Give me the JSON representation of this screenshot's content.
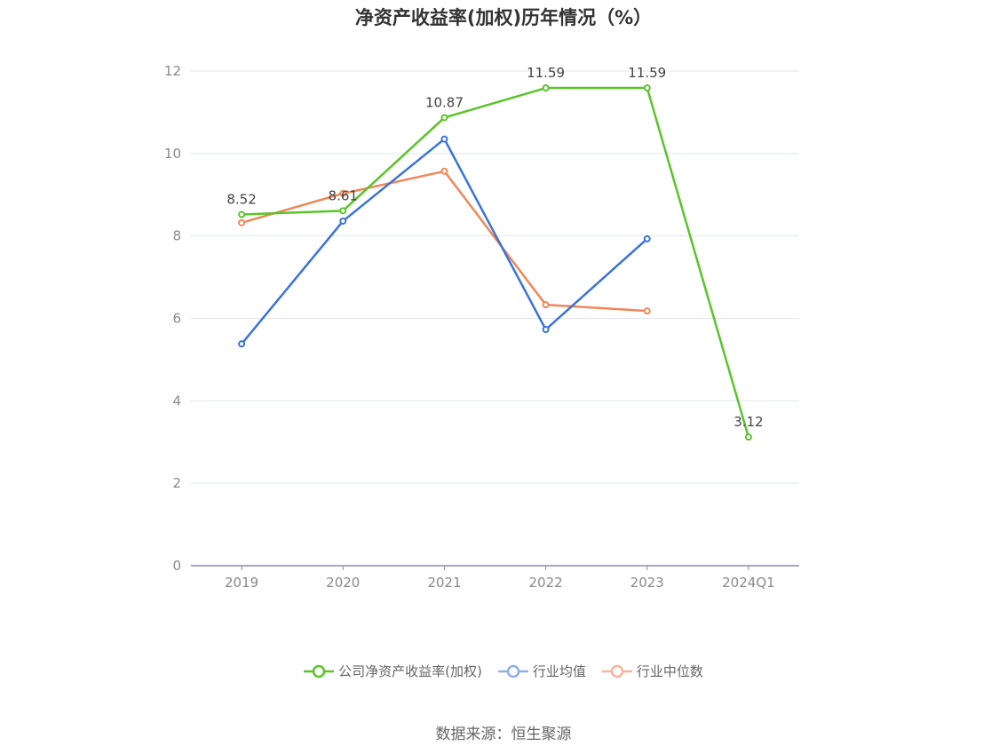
{
  "chart_data": {
    "type": "line",
    "title": "净资产收益率(加权)历年情况（%）",
    "categories": [
      "2019",
      "2020",
      "2021",
      "2022",
      "2023",
      "2024Q1"
    ],
    "ylim": [
      0,
      12
    ],
    "yticks": [
      0,
      2,
      4,
      6,
      8,
      10,
      12
    ],
    "grid": true,
    "legend_position": "bottom",
    "series": [
      {
        "name": "公司净资产收益率(加权)",
        "color": "#5ac42a",
        "values": [
          8.52,
          8.61,
          10.87,
          11.59,
          11.59,
          3.12
        ],
        "labels": [
          "8.52",
          "8.61",
          "10.87",
          "11.59",
          "11.59",
          "3.12"
        ]
      },
      {
        "name": "行业均值",
        "color": "#3b73d9",
        "values": [
          5.38,
          8.36,
          10.35,
          5.73,
          7.93,
          null
        ]
      },
      {
        "name": "行业中位数",
        "color": "#f0875a",
        "values": [
          8.32,
          9.03,
          9.57,
          6.33,
          6.18,
          null
        ]
      }
    ]
  },
  "legend": {
    "items": [
      {
        "label": "公司净资产收益率(加权)",
        "color": "#5ac42a",
        "faded": false
      },
      {
        "label": "行业均值",
        "color": "#8fb0e6",
        "faded": true
      },
      {
        "label": "行业中位数",
        "color": "#f5b59a",
        "faded": true
      }
    ]
  },
  "source": "数据来源：恒生聚源"
}
